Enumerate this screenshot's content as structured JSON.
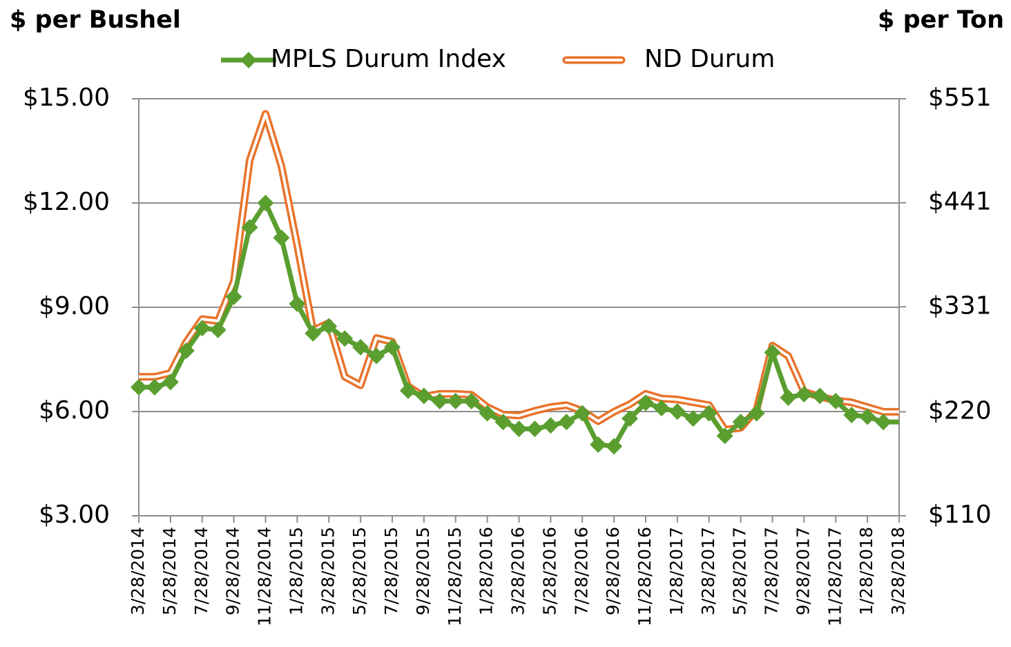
{
  "chart_data": {
    "type": "line",
    "y_label": "$ per Bushel",
    "y2_label": "$ per Ton",
    "categories": [
      "3/28/2014",
      null,
      "5/28/2014",
      null,
      "7/28/2014",
      null,
      "9/28/2014",
      null,
      "11/28/2014",
      null,
      "1/28/2015",
      null,
      "3/28/2015",
      null,
      "5/28/2015",
      null,
      "7/28/2015",
      null,
      "9/28/2015",
      null,
      "11/28/2015",
      null,
      "1/28/2016",
      null,
      "3/28/2016",
      null,
      "5/28/2016",
      null,
      "7/28/2016",
      null,
      "9/28/2016",
      null,
      "11/28/2016",
      null,
      "1/28/2017",
      null,
      "3/28/2017",
      null,
      "5/28/2017",
      null,
      "7/28/2017",
      null,
      "9/28/2017",
      null,
      "11/28/2017",
      null,
      "1/28/2018",
      null,
      "3/28/2018"
    ],
    "series": [
      {
        "name": "MPLS Durum Index",
        "color": "#5a9e2f",
        "values": [
          6.7,
          6.7,
          6.85,
          7.75,
          8.4,
          8.35,
          9.3,
          11.3,
          12.0,
          11.0,
          9.1,
          8.25,
          8.45,
          8.1,
          7.85,
          7.6,
          7.85,
          6.6,
          6.45,
          6.3,
          6.3,
          6.3,
          5.95,
          5.7,
          5.5,
          5.5,
          5.6,
          5.7,
          5.95,
          5.05,
          5.0,
          5.8,
          6.25,
          6.1,
          6.0,
          5.8,
          5.95,
          5.3,
          5.7,
          5.95,
          7.7,
          6.4,
          6.5,
          6.45,
          6.3,
          5.9,
          5.85,
          5.7,
          5.7
        ]
      },
      {
        "name": "ND Durum",
        "color": "#e8722a",
        "axis": "y2",
        "values": [
          257,
          257,
          261,
          294,
          318,
          316,
          358,
          486,
          535,
          480,
          396,
          306,
          314,
          257,
          248,
          298,
          294,
          247,
          236,
          239,
          239,
          238,
          225,
          217,
          216,
          221,
          225,
          227,
          221,
          210,
          220,
          228,
          239,
          234,
          233,
          230,
          227,
          201,
          203,
          222,
          290,
          279,
          241,
          236,
          232,
          230,
          225,
          220,
          220
        ]
      }
    ],
    "ylim": [
      3,
      15
    ],
    "yticks": [
      {
        "value": 3,
        "label": "$3.00"
      },
      {
        "value": 6,
        "label": "$6.00"
      },
      {
        "value": 9,
        "label": "$9.00"
      },
      {
        "value": 12,
        "label": "$12.00"
      },
      {
        "value": 15,
        "label": "$15.00"
      }
    ],
    "y2lim": [
      110,
      551
    ],
    "y2ticks": [
      {
        "value": 110,
        "label": "$110"
      },
      {
        "value": 220,
        "label": "$220"
      },
      {
        "value": 331,
        "label": "$331"
      },
      {
        "value": 441,
        "label": "$441"
      },
      {
        "value": 551,
        "label": "$551"
      }
    ],
    "grid": true,
    "legend": "top"
  }
}
